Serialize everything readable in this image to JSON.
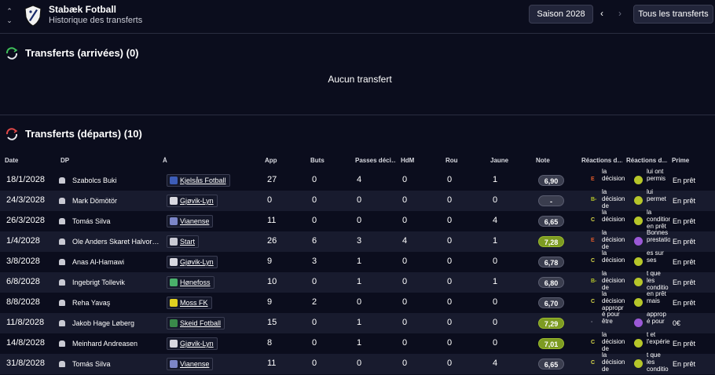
{
  "header": {
    "club_name": "Stabæk Fotball",
    "subtitle": "Historique des transferts",
    "season_button": "Saison 2028",
    "prev_icon": "chevron-left-icon",
    "next_icon": "chevron-right-icon",
    "all_transfers_button": "Tous les transferts"
  },
  "arrivals": {
    "title": "Transferts (arrivées) (0)",
    "empty_text": "Aucun transfert",
    "accent": "#3fbf5a"
  },
  "departures": {
    "title": "Transferts (départs) (10)",
    "accent": "#e04848",
    "columns": [
      "Date",
      "DP",
      "À",
      "App",
      "Buts",
      "Passes déci…",
      "HdM",
      "Rou",
      "Jaune",
      "Note",
      "Réactions d…",
      "Réactions d…",
      "Prime"
    ],
    "rows": [
      {
        "date": "18/1/2028",
        "dp": "Szabolcs Buki",
        "club": "Kjelsås Fotball",
        "club_color": "#3d5db8",
        "app": "27",
        "buts": "0",
        "passes": "4",
        "hdm": "0",
        "rou": "0",
        "jaune": "1",
        "note": "6,90",
        "note_good": false,
        "react_letter": "E",
        "react_color": "#e05a2a",
        "react_text": "la décision",
        "face": "y",
        "fan_text": "lui ont permis",
        "prime": "En prêt"
      },
      {
        "date": "24/3/2028",
        "dp": "Mark Dömötör",
        "club": "Gjøvik-Lyn",
        "club_color": "#d8d8e0",
        "app": "0",
        "buts": "0",
        "passes": "0",
        "hdm": "0",
        "rou": "0",
        "jaune": "0",
        "note": "-",
        "note_good": false,
        "react_letter": "B-",
        "react_color": "#b6c62a",
        "react_text": "la décision de",
        "face": "y",
        "fan_text": "lui permet",
        "prime": "En prêt"
      },
      {
        "date": "26/3/2028",
        "dp": "Tomás Silva",
        "club": "Vianense",
        "club_color": "#7c86c8",
        "app": "11",
        "buts": "0",
        "passes": "0",
        "hdm": "0",
        "rou": "0",
        "jaune": "4",
        "note": "6,65",
        "note_good": false,
        "react_letter": "C",
        "react_color": "#d9d94a",
        "react_text": "la décision",
        "face": "y",
        "fan_text": "la condition en prêt",
        "prime": "En prêt"
      },
      {
        "date": "1/4/2028",
        "dp": "Ole Anders Skaret Halvor…",
        "club": "Start",
        "club_color": "#c9cad3",
        "app": "26",
        "buts": "6",
        "passes": "3",
        "hdm": "4",
        "rou": "0",
        "jaune": "1",
        "note": "7,28",
        "note_good": true,
        "react_letter": "E",
        "react_color": "#e05a2a",
        "react_text": "la décision de",
        "face": "p",
        "fan_text": "Bonnes prestations",
        "prime": "En prêt"
      },
      {
        "date": "3/8/2028",
        "dp": "Anas Al-Hamawi",
        "club": "Gjøvik-Lyn",
        "club_color": "#d8d8e0",
        "app": "9",
        "buts": "3",
        "passes": "1",
        "hdm": "0",
        "rou": "0",
        "jaune": "0",
        "note": "6,78",
        "note_good": false,
        "react_letter": "C",
        "react_color": "#d9d94a",
        "react_text": "la décision",
        "face": "y",
        "fan_text": "es sur ses",
        "prime": "En prêt"
      },
      {
        "date": "6/8/2028",
        "dp": "Ingebrigt Tollevik",
        "club": "Hønefoss",
        "club_color": "#4ab06a",
        "app": "10",
        "buts": "0",
        "passes": "1",
        "hdm": "0",
        "rou": "0",
        "jaune": "1",
        "note": "6,80",
        "note_good": false,
        "react_letter": "B-",
        "react_color": "#b6c62a",
        "react_text": "la décision de",
        "face": "y",
        "fan_text": "t que les conditio",
        "prime": "En prêt"
      },
      {
        "date": "8/8/2028",
        "dp": "Reha Yavaş",
        "club": "Moss FK",
        "club_color": "#e0d020",
        "app": "9",
        "buts": "2",
        "passes": "0",
        "hdm": "0",
        "rou": "0",
        "jaune": "0",
        "note": "6,70",
        "note_good": false,
        "react_letter": "C",
        "react_color": "#d9d94a",
        "react_text": "la décision appropr",
        "face": "y",
        "fan_text": "en prêt mais",
        "prime": "En prêt"
      },
      {
        "date": "11/8/2028",
        "dp": "Jakob Hage Løberg",
        "club": "Skeid Fotball",
        "club_color": "#3a8a4a",
        "app": "15",
        "buts": "0",
        "passes": "1",
        "hdm": "0",
        "rou": "0",
        "jaune": "0",
        "note": "7,29",
        "note_good": true,
        "react_letter": "-",
        "react_color": "#8a8c9a",
        "react_text": "é pour être",
        "face": "p",
        "fan_text": "approp é pour",
        "prime": "0€"
      },
      {
        "date": "14/8/2028",
        "dp": "Meinhard Andreasen",
        "club": "Gjøvik-Lyn",
        "club_color": "#d8d8e0",
        "app": "8",
        "buts": "0",
        "passes": "1",
        "hdm": "0",
        "rou": "0",
        "jaune": "0",
        "note": "7,01",
        "note_good": true,
        "react_letter": "C",
        "react_color": "#d9d94a",
        "react_text": "la décision de",
        "face": "y",
        "fan_text": "t et l'expérience",
        "prime": "En prêt"
      },
      {
        "date": "31/8/2028",
        "dp": "Tomás Silva",
        "club": "Vianense",
        "club_color": "#7c86c8",
        "app": "11",
        "buts": "0",
        "passes": "0",
        "hdm": "0",
        "rou": "0",
        "jaune": "4",
        "note": "6,65",
        "note_good": false,
        "react_letter": "C",
        "react_color": "#d9d94a",
        "react_text": "la décision de",
        "face": "y",
        "fan_text": "t que les conditio",
        "prime": "En prêt"
      }
    ]
  }
}
